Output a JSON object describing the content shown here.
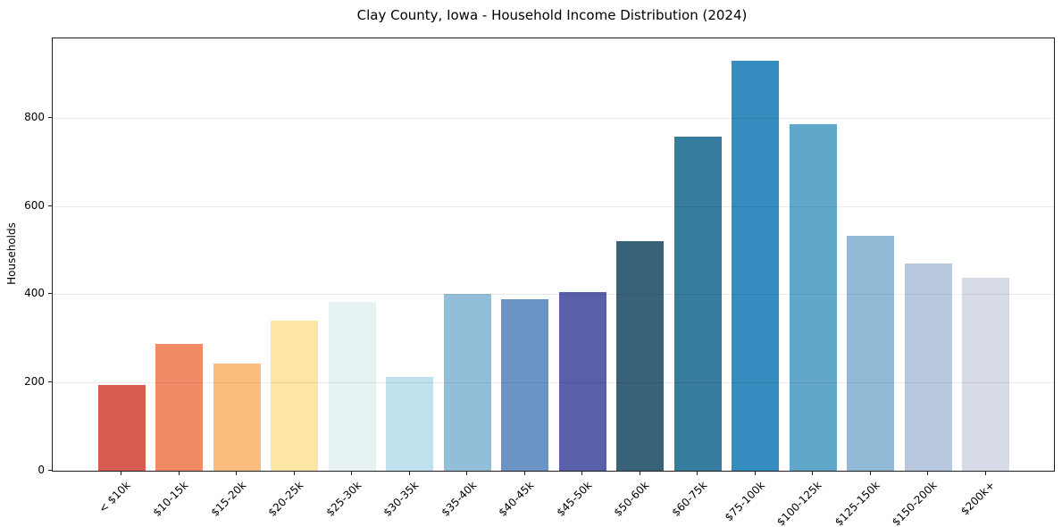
{
  "chart_data": {
    "type": "bar",
    "title": "Clay County, Iowa - Household Income Distribution (2024)",
    "xlabel": "",
    "ylabel": "Households",
    "categories": [
      "< $10k",
      "$10-15k",
      "$15-20k",
      "$20-25k",
      "$25-30k",
      "$30-35k",
      "$35-40k",
      "$40-45k",
      "$45-50k",
      "$50-60k",
      "$60-75k",
      "$75-100k",
      "$100-125k",
      "$125-150k",
      "$150-200k",
      "$200k+"
    ],
    "values": [
      195,
      288,
      244,
      340,
      383,
      212,
      400,
      388,
      405,
      520,
      757,
      930,
      785,
      533,
      470,
      437
    ],
    "bar_colors": [
      "#d85c51",
      "#f28a68",
      "#fcbc7e",
      "#fde5a4",
      "#e6f2f1",
      "#bfe2ee",
      "#93bed9",
      "#6b94c5",
      "#5a5fa9",
      "#38617a",
      "#367c9e",
      "#348cbf",
      "#61a7ca",
      "#92bad7",
      "#b8c9df",
      "#d7dae7"
    ],
    "yticks": [
      0,
      200,
      400,
      600,
      800
    ],
    "ylim": [
      0,
      980
    ],
    "grid": "horizontal",
    "legend": "none",
    "background_color": "#ffffff",
    "x_tick_label_rotation_deg": 45
  }
}
